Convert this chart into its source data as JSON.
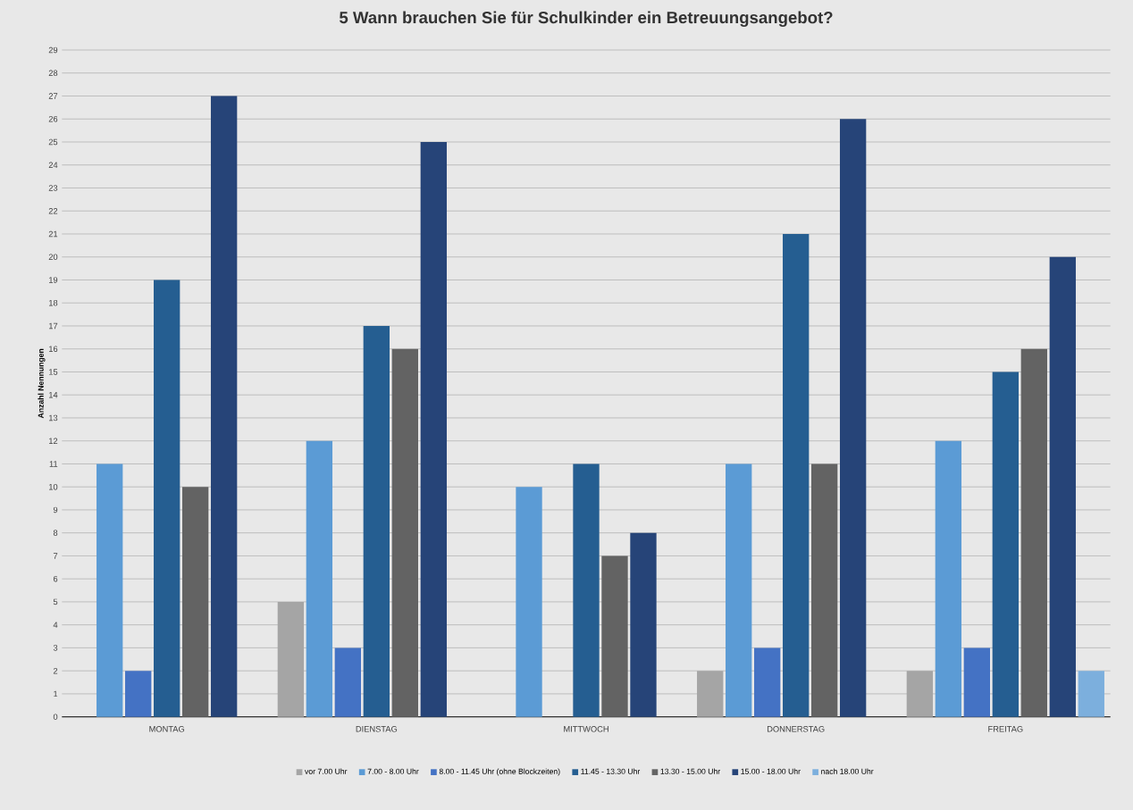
{
  "chart_data": {
    "type": "bar",
    "title": "5 Wann brauchen Sie für Schulkinder ein Betreuungsangebot?",
    "ylabel": "Anzahl Nennungen",
    "categories": [
      "MONTAG",
      "DIENSTAG",
      "MITTWOCH",
      "DONNERSTAG",
      "FREITAG"
    ],
    "series": [
      {
        "name": "vor 7.00 Uhr",
        "color": "#a5a5a5",
        "values": [
          0,
          5,
          0,
          2,
          2
        ]
      },
      {
        "name": "7.00 - 8.00 Uhr",
        "color": "#5b9bd5",
        "values": [
          11,
          12,
          10,
          11,
          12
        ]
      },
      {
        "name": "8.00 - 11.45 Uhr (ohne Blockzeiten)",
        "color": "#4472c4",
        "values": [
          2,
          3,
          0,
          3,
          3
        ]
      },
      {
        "name": "11.45 - 13.30 Uhr",
        "color": "#255e91",
        "values": [
          19,
          17,
          11,
          21,
          15
        ]
      },
      {
        "name": "13.30 - 15.00 Uhr",
        "color": "#636363",
        "values": [
          10,
          16,
          7,
          11,
          16
        ]
      },
      {
        "name": "15.00 - 18.00 Uhr",
        "color": "#264478",
        "values": [
          27,
          25,
          8,
          26,
          20
        ]
      },
      {
        "name": "nach 18.00 Uhr",
        "color": "#7cafdd",
        "values": [
          0,
          0,
          0,
          0,
          2
        ]
      }
    ],
    "ylim": [
      0,
      29
    ],
    "yticks": [
      0,
      1,
      2,
      3,
      4,
      5,
      6,
      7,
      8,
      9,
      10,
      11,
      12,
      13,
      14,
      15,
      16,
      17,
      18,
      19,
      20,
      21,
      22,
      23,
      24,
      25,
      26,
      27,
      28,
      29
    ],
    "grid": "y",
    "legend": "bottom"
  }
}
